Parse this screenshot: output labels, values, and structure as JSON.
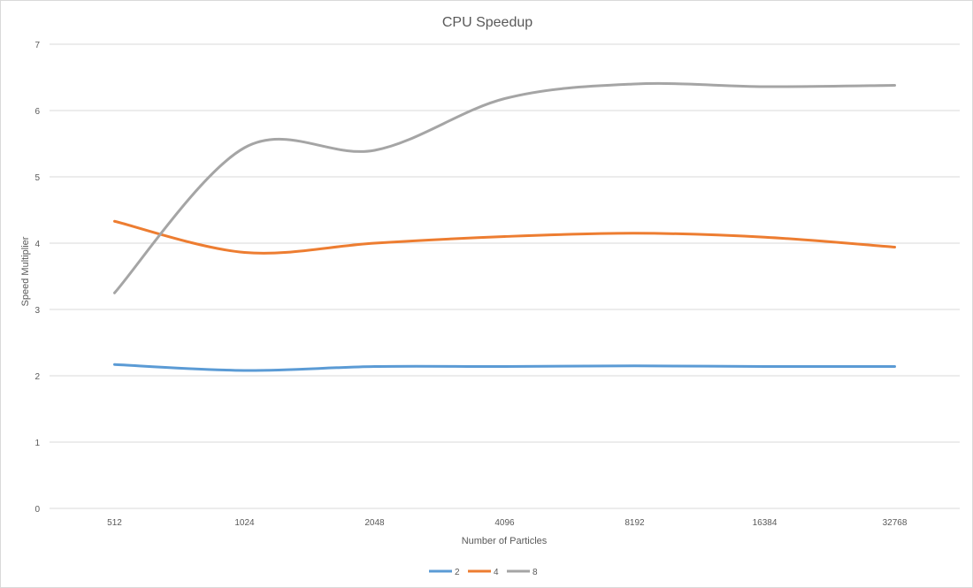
{
  "chart_data": {
    "type": "line",
    "title": "CPU Speedup",
    "xlabel": "Number of Particles",
    "ylabel": "Speed Multiplier",
    "categories": [
      "512",
      "1024",
      "2048",
      "4096",
      "8192",
      "16384",
      "32768"
    ],
    "ylim": [
      0,
      7
    ],
    "yticks": [
      0,
      1,
      2,
      3,
      4,
      5,
      6,
      7
    ],
    "grid": true,
    "smooth": true,
    "legend_position": "bottom",
    "series": [
      {
        "name": "2",
        "color": "#5b9bd5",
        "values": [
          2.17,
          2.08,
          2.14,
          2.14,
          2.15,
          2.14,
          2.14
        ]
      },
      {
        "name": "4",
        "color": "#ed7d31",
        "values": [
          4.33,
          3.86,
          4.0,
          4.1,
          4.15,
          4.09,
          3.94
        ]
      },
      {
        "name": "8",
        "color": "#a5a5a5",
        "values": [
          3.25,
          5.44,
          5.4,
          6.18,
          6.4,
          6.36,
          6.38
        ]
      }
    ]
  }
}
